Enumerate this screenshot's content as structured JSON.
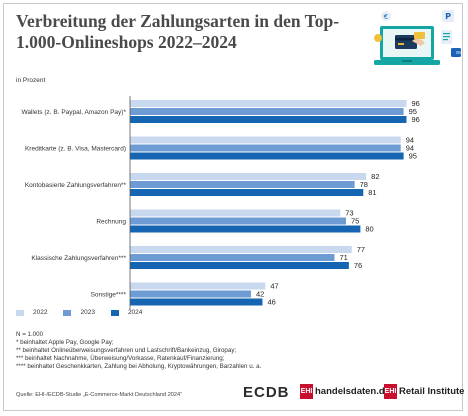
{
  "title": "Verbreitung der Zahlungsarten in den Top-1.000-Onlineshops 2022–2024",
  "unit": "in Prozent",
  "colors": {
    "2022": "#c8d9ef",
    "2023": "#6d9bd4",
    "2024": "#1565b3"
  },
  "chart_data": {
    "type": "bar",
    "orientation": "horizontal",
    "categories": [
      "Wallets (z. B. Paypal, Amazon Pay)*",
      "Kreditkarte (z. B. Visa, Mastercard)",
      "Kontobasierte Zahlungsverfahren**",
      "Rechnung",
      "Klassische Zahlungsverfahren***",
      "Sonstige****"
    ],
    "series": [
      {
        "name": "2022",
        "values": [
          96,
          94,
          82,
          73,
          77,
          47
        ]
      },
      {
        "name": "2023",
        "values": [
          95,
          94,
          78,
          75,
          71,
          42
        ]
      },
      {
        "name": "2024",
        "values": [
          96,
          95,
          81,
          80,
          76,
          46
        ]
      }
    ],
    "xlim": [
      0,
      100
    ],
    "grid": false,
    "legend": "bottom-left"
  },
  "footnotes": [
    "N = 1.000",
    "* beinhaltet Apple Pay, Google Pay;",
    "** beinhaltet Onlineüberweisungsverfahren und Lastschrift/Bankeinzug, Giropay;",
    "*** beinhaltet Nachnahme, Überweisung/Vorkasse, Ratenkauf/Finanzierung;",
    "**** beinhaltet Geschenkkarten, Zahlung bei Abholung, Kryptowährungen, Barzahlen u. a."
  ],
  "source": "Quelle: EHI-/ECDB-Studie „E-Commerce-Markt Deutschland 2024“",
  "logos": {
    "ecdb": "ECDB",
    "ehi_mark": "EHI",
    "handelsdaten": "handelsdaten.de",
    "retail_institute": "Retail Institute"
  }
}
